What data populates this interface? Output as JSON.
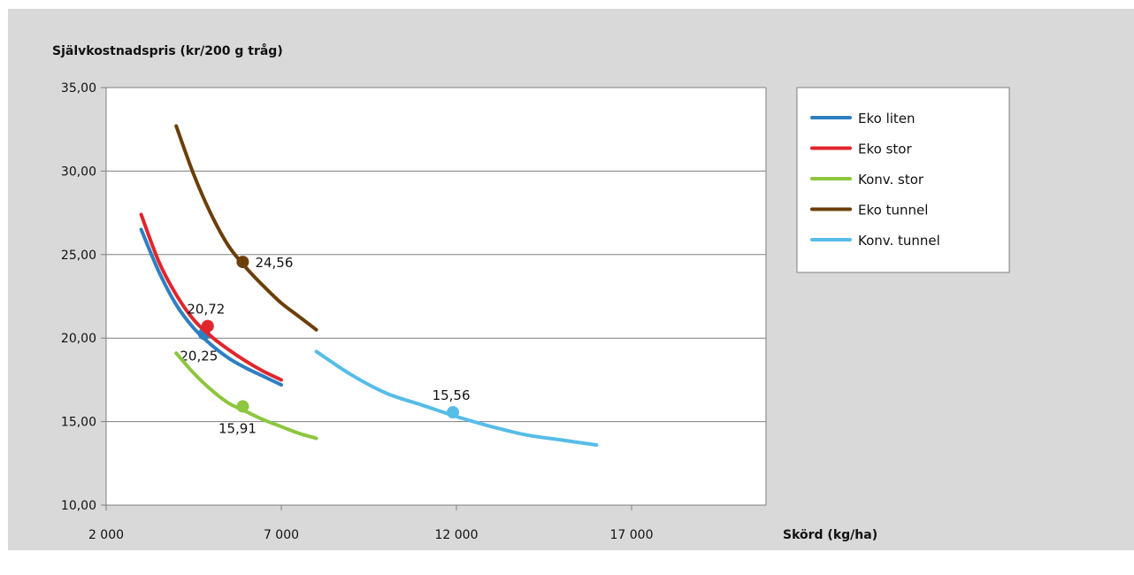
{
  "chart_data": {
    "type": "line",
    "ylabel": "Självkostnadspris (kr/200 g tråg)",
    "xlabel": "Skörd (kg/ha)",
    "xlim": [
      2000,
      19500
    ],
    "ylim": [
      10,
      35
    ],
    "x_ticks": [
      2000,
      7000,
      12000,
      17000
    ],
    "x_tick_labels": [
      "2 000",
      "7 000",
      "12 000",
      "17 000"
    ],
    "y_ticks": [
      10,
      15,
      20,
      25,
      30,
      35
    ],
    "y_tick_labels": [
      "10,00",
      "15,00",
      "20,00",
      "25,00",
      "30,00",
      "35,00"
    ],
    "grid": "horizontal",
    "legend_position": "right",
    "series": [
      {
        "name": "Eko liten",
        "color": "#2e7fc2",
        "x": [
          3000,
          3500,
          4000,
          4500,
          5000,
          5500,
          6000,
          6500,
          7000
        ],
        "y": [
          26.5,
          24.0,
          22.0,
          20.6,
          19.6,
          18.8,
          18.2,
          17.7,
          17.2
        ],
        "marker": {
          "x": 4800,
          "y": 20.25,
          "label": "20,25",
          "label_position": "below"
        }
      },
      {
        "name": "Eko stor",
        "color": "#e0262c",
        "x": [
          3000,
          3500,
          4000,
          4500,
          5000,
          5500,
          6000,
          6500,
          7000
        ],
        "y": [
          27.4,
          24.6,
          22.6,
          21.1,
          20.1,
          19.3,
          18.6,
          18.0,
          17.5
        ],
        "marker": {
          "x": 4900,
          "y": 20.72,
          "label": "20,72",
          "label_position": "above"
        }
      },
      {
        "name": "Konv. stor",
        "color": "#8dc63f",
        "x": [
          4000,
          4500,
          5000,
          5500,
          6000,
          6500,
          7000,
          7500,
          8000
        ],
        "y": [
          19.1,
          17.9,
          16.9,
          16.1,
          15.6,
          15.1,
          14.7,
          14.3,
          14.0
        ],
        "marker": {
          "x": 5900,
          "y": 15.91,
          "label": "15,91",
          "label_position": "below"
        }
      },
      {
        "name": "Eko tunnel",
        "color": "#6b3e0a",
        "x": [
          4000,
          4500,
          5000,
          5500,
          6000,
          6500,
          7000,
          7500,
          8000
        ],
        "y": [
          32.7,
          29.8,
          27.4,
          25.5,
          24.2,
          23.1,
          22.1,
          21.3,
          20.5
        ],
        "marker": {
          "x": 5900,
          "y": 24.56,
          "label": "24,56",
          "label_position": "right"
        }
      },
      {
        "name": "Konv. tunnel",
        "color": "#56bce8",
        "x": [
          8000,
          9000,
          10000,
          11000,
          12000,
          13000,
          14000,
          15000,
          16000
        ],
        "y": [
          19.2,
          17.8,
          16.7,
          16.0,
          15.3,
          14.7,
          14.2,
          13.9,
          13.6
        ],
        "marker": {
          "x": 11900,
          "y": 15.56,
          "label": "15,56",
          "label_position": "above"
        }
      }
    ]
  },
  "colors": {
    "background": "#d9d9d9",
    "plot_background": "#ffffff",
    "grid": "#7f7f7f",
    "axis": "#7f7f7f"
  }
}
